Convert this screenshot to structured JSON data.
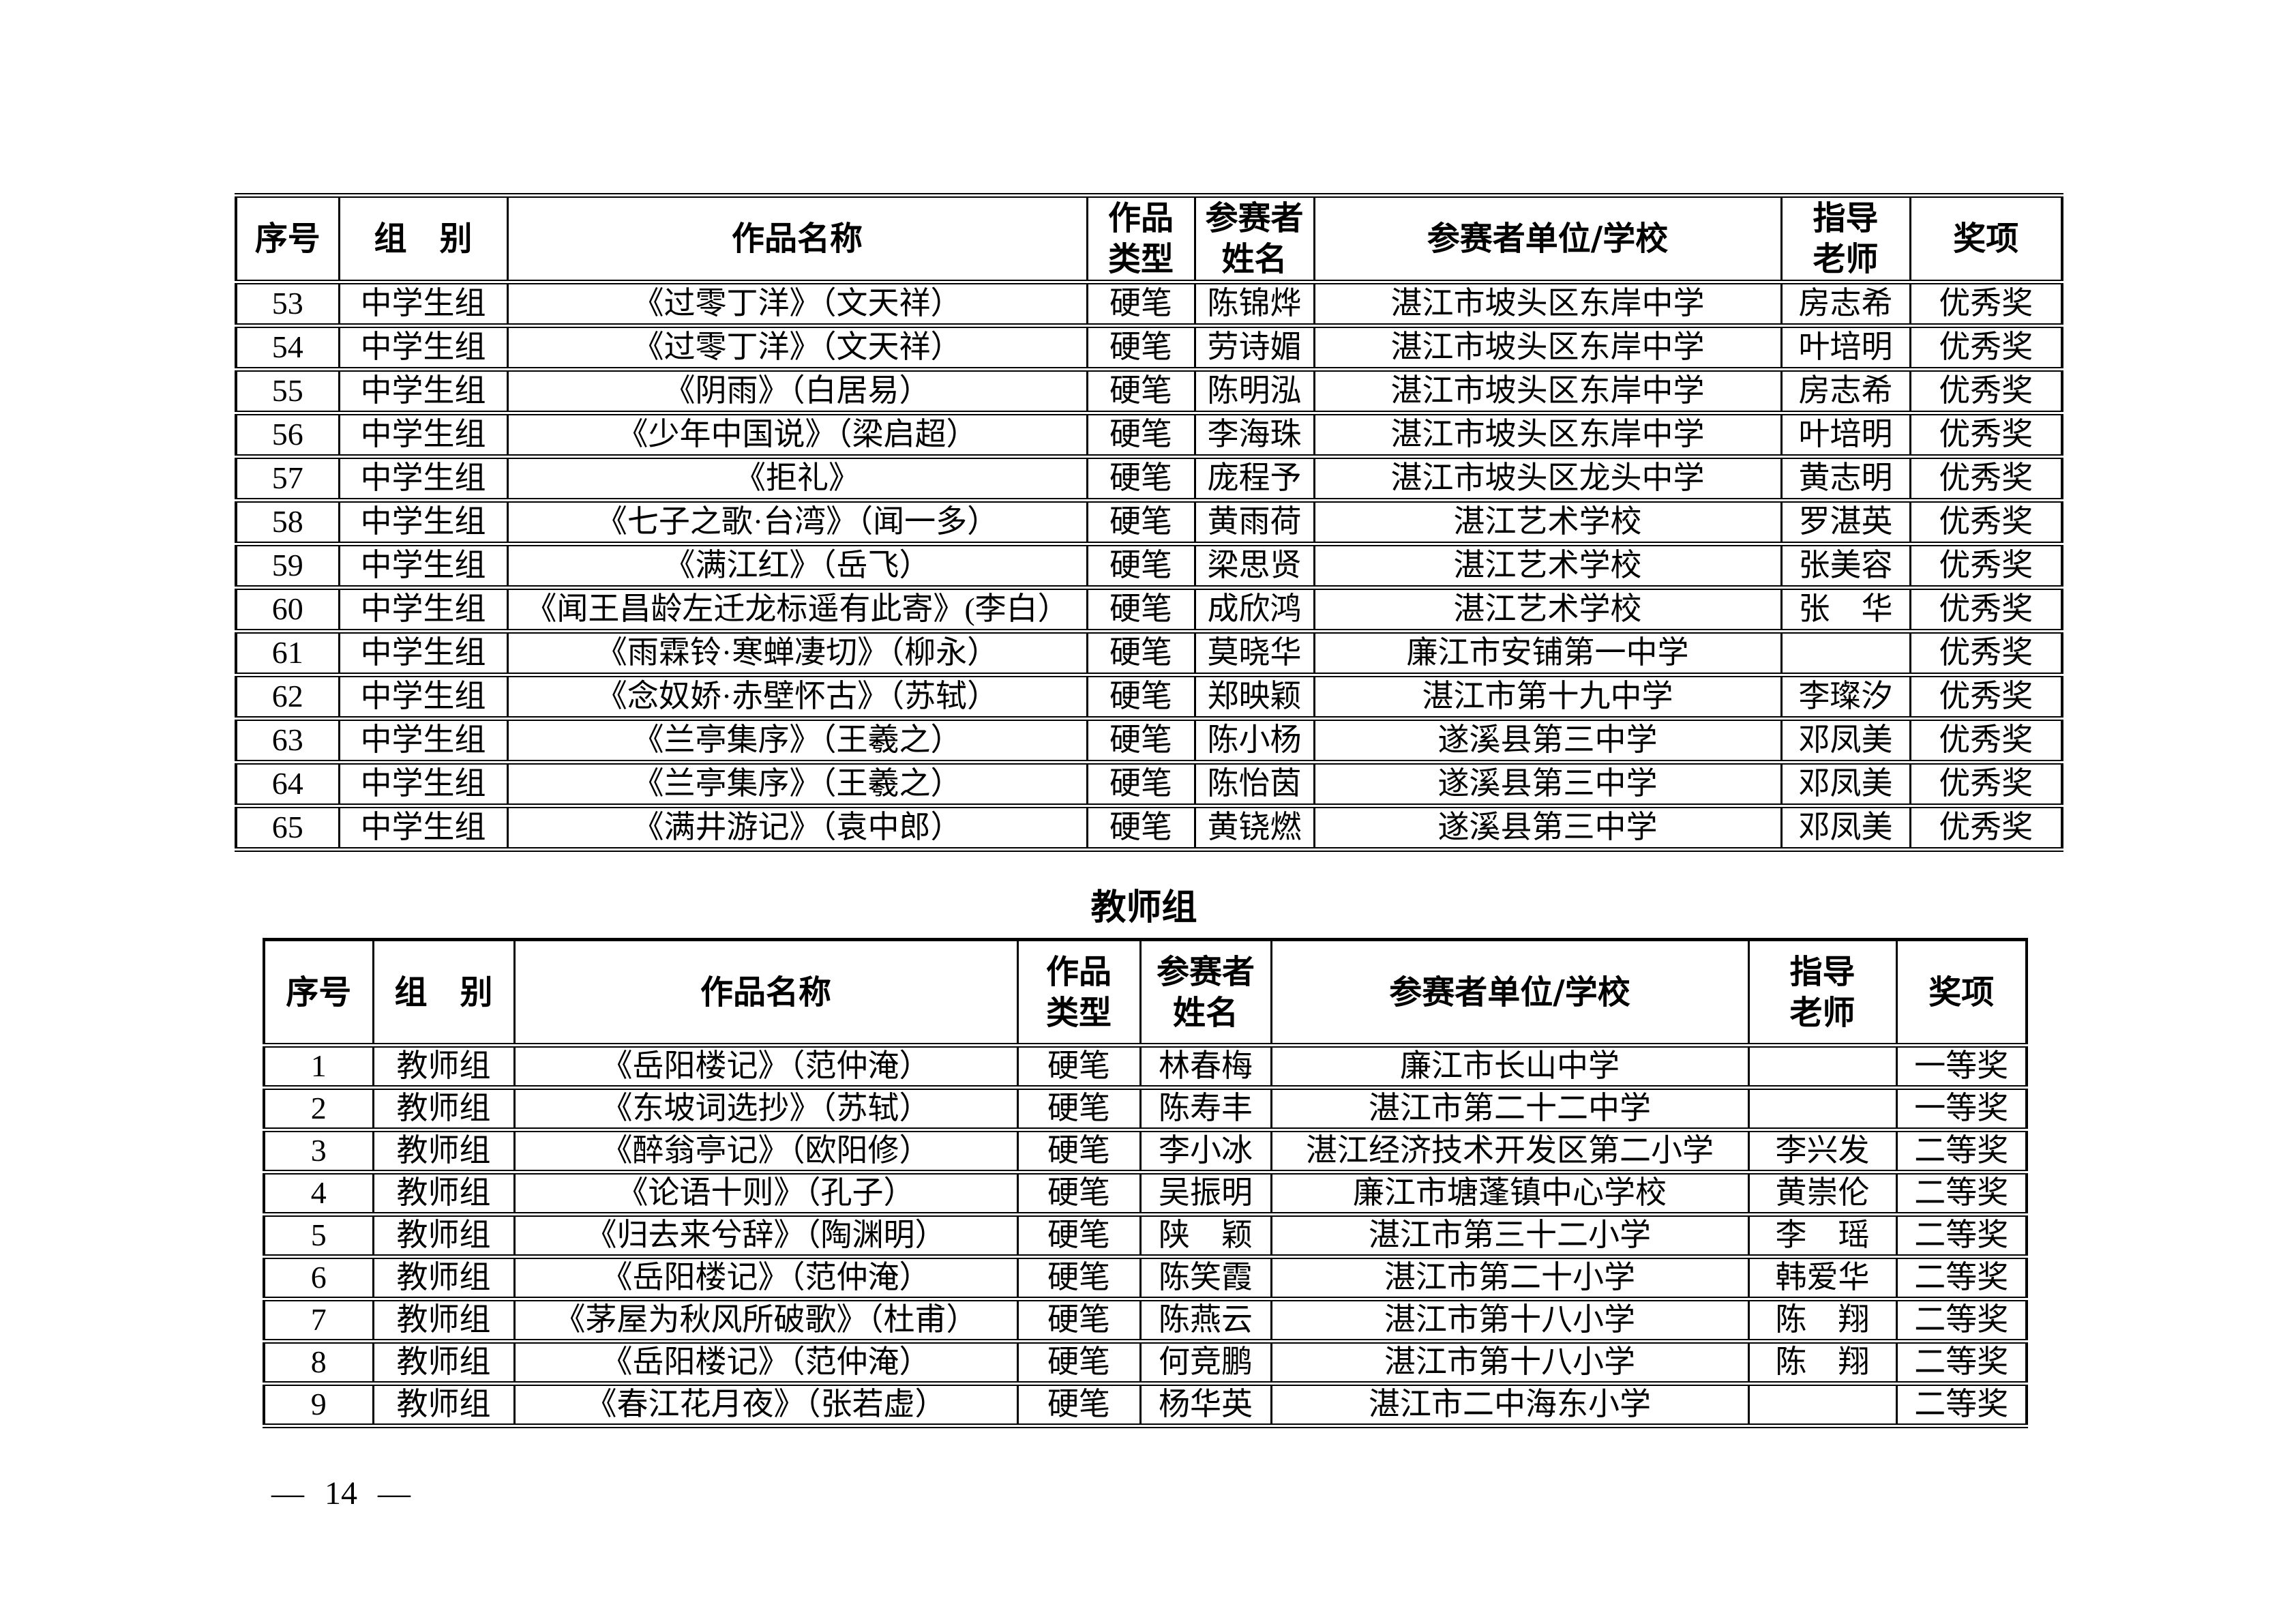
{
  "page": {
    "background_color": "#ffffff",
    "text_color": "#000000",
    "footer_page_number": "— 14 —"
  },
  "columns": [
    "序号",
    "组　别",
    "作品名称",
    "作品\n类型",
    "参赛者\n姓名",
    "参赛者单位/学校",
    "指导\n老师",
    "奖项"
  ],
  "middle_school_table": {
    "rows": [
      [
        "53",
        "中学生组",
        "《过零丁洋》（文天祥）",
        "硬笔",
        "陈锦烨",
        "湛江市坡头区东岸中学",
        "房志希",
        "优秀奖"
      ],
      [
        "54",
        "中学生组",
        "《过零丁洋》（文天祥）",
        "硬笔",
        "劳诗媚",
        "湛江市坡头区东岸中学",
        "叶培明",
        "优秀奖"
      ],
      [
        "55",
        "中学生组",
        "《阴雨》（白居易）",
        "硬笔",
        "陈明泓",
        "湛江市坡头区东岸中学",
        "房志希",
        "优秀奖"
      ],
      [
        "56",
        "中学生组",
        "《少年中国说》（梁启超）",
        "硬笔",
        "李海珠",
        "湛江市坡头区东岸中学",
        "叶培明",
        "优秀奖"
      ],
      [
        "57",
        "中学生组",
        "《拒礼》",
        "硬笔",
        "庞程予",
        "湛江市坡头区龙头中学",
        "黄志明",
        "优秀奖"
      ],
      [
        "58",
        "中学生组",
        "《七子之歌·台湾》（闻一多）",
        "硬笔",
        "黄雨荷",
        "湛江艺术学校",
        "罗湛英",
        "优秀奖"
      ],
      [
        "59",
        "中学生组",
        "《满江红》（岳飞）",
        "硬笔",
        "梁思贤",
        "湛江艺术学校",
        "张美容",
        "优秀奖"
      ],
      [
        "60",
        "中学生组",
        "《闻王昌龄左迁龙标遥有此寄》(李白）",
        "硬笔",
        "成欣鸿",
        "湛江艺术学校",
        "张　华",
        "优秀奖"
      ],
      [
        "61",
        "中学生组",
        "《雨霖铃·寒蝉凄切》（柳永）",
        "硬笔",
        "莫晓华",
        "廉江市安铺第一中学",
        "",
        "优秀奖"
      ],
      [
        "62",
        "中学生组",
        "《念奴娇·赤壁怀古》（苏轼）",
        "硬笔",
        "郑映颖",
        "湛江市第十九中学",
        "李璨汐",
        "优秀奖"
      ],
      [
        "63",
        "中学生组",
        "《兰亭集序》（王羲之）",
        "硬笔",
        "陈小杨",
        "遂溪县第三中学",
        "邓凤美",
        "优秀奖"
      ],
      [
        "64",
        "中学生组",
        "《兰亭集序》（王羲之）",
        "硬笔",
        "陈怡茵",
        "遂溪县第三中学",
        "邓凤美",
        "优秀奖"
      ],
      [
        "65",
        "中学生组",
        "《满井游记》（袁中郎）",
        "硬笔",
        "黄铙燃",
        "遂溪县第三中学",
        "邓凤美",
        "优秀奖"
      ]
    ]
  },
  "teacher_section": {
    "title": "教师组"
  },
  "teacher_table": {
    "rows": [
      [
        "1",
        "教师组",
        "《岳阳楼记》（范仲淹）",
        "硬笔",
        "林春梅",
        "廉江市长山中学",
        "",
        "一等奖"
      ],
      [
        "2",
        "教师组",
        "《东坡词选抄》（苏轼）",
        "硬笔",
        "陈寿丰",
        "湛江市第二十二中学",
        "",
        "一等奖"
      ],
      [
        "3",
        "教师组",
        "《醉翁亭记》（欧阳修）",
        "硬笔",
        "李小冰",
        "湛江经济技术开发区第二小学",
        "李兴发",
        "二等奖"
      ],
      [
        "4",
        "教师组",
        "《论语十则》（孔子）",
        "硬笔",
        "吴振明",
        "廉江市塘蓬镇中心学校",
        "黄崇伦",
        "二等奖"
      ],
      [
        "5",
        "教师组",
        "《归去来兮辞》（陶渊明）",
        "硬笔",
        "陕　颖",
        "湛江市第三十二小学",
        "李　瑶",
        "二等奖"
      ],
      [
        "6",
        "教师组",
        "《岳阳楼记》（范仲淹）",
        "硬笔",
        "陈笑霞",
        "湛江市第二十小学",
        "韩爱华",
        "二等奖"
      ],
      [
        "7",
        "教师组",
        "《茅屋为秋风所破歌》（杜甫）",
        "硬笔",
        "陈燕云",
        "湛江市第十八小学",
        "陈　翔",
        "二等奖"
      ],
      [
        "8",
        "教师组",
        "《岳阳楼记》（范仲淹）",
        "硬笔",
        "何竞鹏",
        "湛江市第十八小学",
        "陈　翔",
        "二等奖"
      ],
      [
        "9",
        "教师组",
        "《春江花月夜》（张若虚）",
        "硬笔",
        "杨华英",
        "湛江市二中海东小学",
        "",
        "二等奖"
      ]
    ]
  }
}
